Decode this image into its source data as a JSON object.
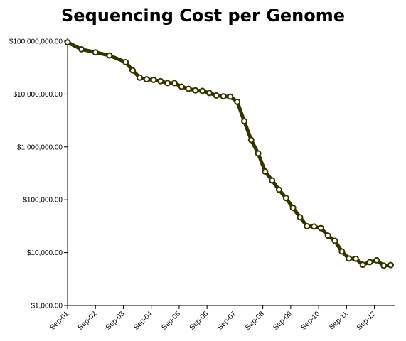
{
  "chart_data": {
    "type": "line",
    "title": "Sequencing Cost per Genome",
    "xlabel": "",
    "ylabel": "",
    "y_scale": "log",
    "ylim": [
      1000,
      100000000
    ],
    "y_ticks": [
      {
        "value": 1000,
        "label": "$1,000.00"
      },
      {
        "value": 10000,
        "label": "$10,000.00"
      },
      {
        "value": 100000,
        "label": "$100,000.00"
      },
      {
        "value": 1000000,
        "label": "$1,000,000.00"
      },
      {
        "value": 10000000,
        "label": "$10,000,000.00"
      },
      {
        "value": 100000000,
        "label": "$100,000,000.00"
      }
    ],
    "x_ticks": [
      "Sep-01",
      "Sep-02",
      "Sep-03",
      "Sep-04",
      "Sep-05",
      "Sep-06",
      "Sep-07",
      "Sep-08",
      "Sep-09",
      "Sep-10",
      "Sep-11",
      "Sep-12"
    ],
    "x_range": [
      "Sep-01",
      "Jun-13"
    ],
    "grid": false,
    "legend": "none",
    "line_color": "#333300",
    "marker_fill": "#ffffff",
    "series": [
      {
        "x": [
          "Sep-01",
          "Mar-02",
          "Sep-02",
          "Mar-03",
          "Oct-03",
          "Jan-04",
          "Apr-04",
          "Jul-04",
          "Oct-04",
          "Jan-05",
          "Apr-05",
          "Jul-05",
          "Oct-05",
          "Jan-06",
          "Apr-06",
          "Jul-06",
          "Oct-06",
          "Jan-07",
          "Apr-07",
          "Jul-07",
          "Oct-07",
          "Jan-08",
          "Apr-08",
          "Jul-08",
          "Oct-08",
          "Jan-09",
          "Apr-09",
          "Jul-09",
          "Oct-09",
          "Jan-10",
          "Apr-10",
          "Jul-10",
          "Oct-10",
          "Jan-11",
          "Apr-11",
          "Jul-11",
          "Oct-11",
          "Jan-12",
          "Apr-12",
          "Jul-12",
          "Oct-12",
          "Jan-13",
          "Apr-13"
        ],
        "values": [
          95263072,
          70175437,
          61448422,
          53751684,
          40157554,
          27984241,
          20442576,
          19055490,
          18519312,
          17534970,
          16159699,
          16180224,
          13801124,
          12585679,
          11732347,
          11455708,
          10474556,
          9408739,
          9047003,
          8927342,
          7147571,
          3063820,
          1352982,
          752080,
          342502,
          232735,
          154714,
          108065,
          70333,
          46774,
          31512,
          31125,
          29092,
          20963,
          16712,
          10497,
          7743,
          7666,
          5901,
          6618,
          7148,
          5671,
          5826
        ]
      }
    ]
  }
}
